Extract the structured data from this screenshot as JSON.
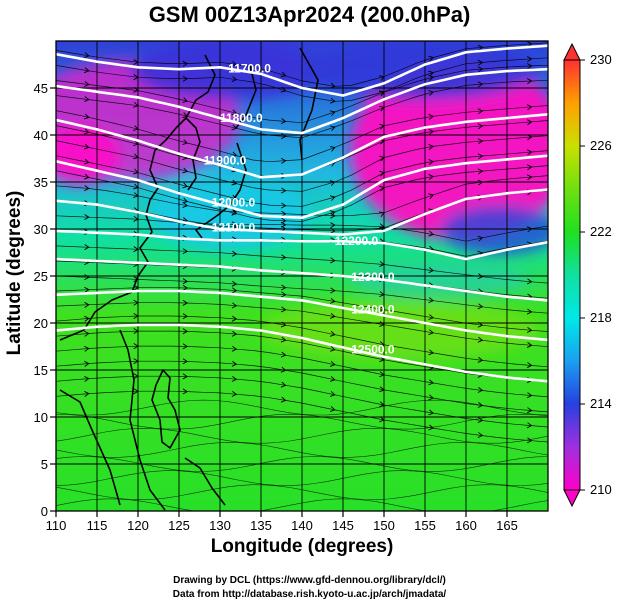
{
  "title": "GSM 00Z13Apr2024 (200.0hPa)",
  "chart_data": {
    "type": "heatmap",
    "title": "GSM 00Z13Apr2024 (200.0hPa)",
    "xlabel": "Longitude (degrees)",
    "ylabel": "Latitude  (degrees)",
    "xlim": [
      110,
      170
    ],
    "ylim": [
      0,
      50
    ],
    "x_ticks": [
      "110",
      "115",
      "120",
      "125",
      "130",
      "135",
      "140",
      "145",
      "150",
      "155",
      "160",
      "165"
    ],
    "y_ticks": [
      "0",
      "5",
      "10",
      "15",
      "20",
      "25",
      "30",
      "35",
      "40",
      "45"
    ],
    "grid": true,
    "colorbar": {
      "range": [
        210,
        230
      ],
      "tick_labels": [
        "210",
        "214",
        "218",
        "222",
        "226",
        "230"
      ],
      "colors": {
        "210": "#ff00c8",
        "212": "#a030e0",
        "214": "#2840e0",
        "216": "#1aa0f0",
        "218": "#00e8e8",
        "220": "#10e0a0",
        "222": "#20e020",
        "224": "#70e010",
        "226": "#c8e000",
        "228": "#ffa000",
        "230": "#ff3030"
      }
    },
    "contours": [
      {
        "label": "11700.0",
        "y": [
          48.6,
          47.8,
          47.2,
          47.0,
          47.2,
          46.5,
          45.0,
          44.2,
          45.5,
          47.5,
          48.8,
          49.2,
          49.5
        ]
      },
      {
        "label": "11800.0",
        "y": [
          45.2,
          44.6,
          44.0,
          43.0,
          41.8,
          40.6,
          40.2,
          41.8,
          43.8,
          45.4,
          46.4,
          46.8,
          47.0
        ]
      },
      {
        "label": "11900.0",
        "y": [
          41.6,
          40.6,
          39.4,
          38.0,
          36.8,
          35.5,
          35.8,
          37.6,
          39.8,
          40.8,
          41.4,
          41.8,
          42.2
        ]
      },
      {
        "label": "12000.0",
        "y": [
          37.2,
          36.2,
          35.2,
          33.8,
          32.6,
          31.4,
          31.2,
          32.6,
          35.2,
          36.4,
          37.0,
          37.4,
          37.8
        ]
      },
      {
        "label": "12100.0",
        "y": [
          33.0,
          32.6,
          31.8,
          30.8,
          30.0,
          29.8,
          29.6,
          29.4,
          29.8,
          31.6,
          33.2,
          33.8,
          34.2
        ]
      },
      {
        "label": "12200.0",
        "y": [
          29.8,
          29.6,
          29.4,
          29.0,
          28.8,
          28.8,
          28.7,
          28.7,
          28.5,
          27.8,
          26.8,
          27.8,
          28.6
        ]
      },
      {
        "label": "12300.0",
        "y": [
          26.8,
          26.6,
          26.4,
          26.2,
          26.0,
          25.6,
          25.3,
          25.0,
          24.6,
          24.0,
          23.4,
          22.8,
          22.4
        ]
      },
      {
        "label": "12400.0",
        "y": [
          23.0,
          23.2,
          23.4,
          23.4,
          23.2,
          22.8,
          22.4,
          21.6,
          20.8,
          20.0,
          19.2,
          18.6,
          18.2
        ]
      },
      {
        "label": "12500.0",
        "y": [
          19.2,
          19.6,
          19.8,
          19.8,
          19.6,
          19.2,
          18.4,
          17.4,
          16.4,
          15.6,
          14.8,
          14.2,
          13.8
        ]
      }
    ],
    "contour_x": [
      110,
      115,
      120,
      125,
      130,
      135,
      140,
      145,
      150,
      155,
      160,
      165,
      170
    ],
    "annotations": [
      "Drawing by DCL (https://www.gfd-dennou.org/library/dcl/)",
      "Data from http://database.rish.kyoto-u.ac.jp/arch/jmadata/"
    ]
  },
  "credits": {
    "line1": "Drawing by DCL (https://www.gfd-dennou.org/library/dcl/)",
    "line2": "Data from http://database.rish.kyoto-u.ac.jp/arch/jmadata/"
  }
}
